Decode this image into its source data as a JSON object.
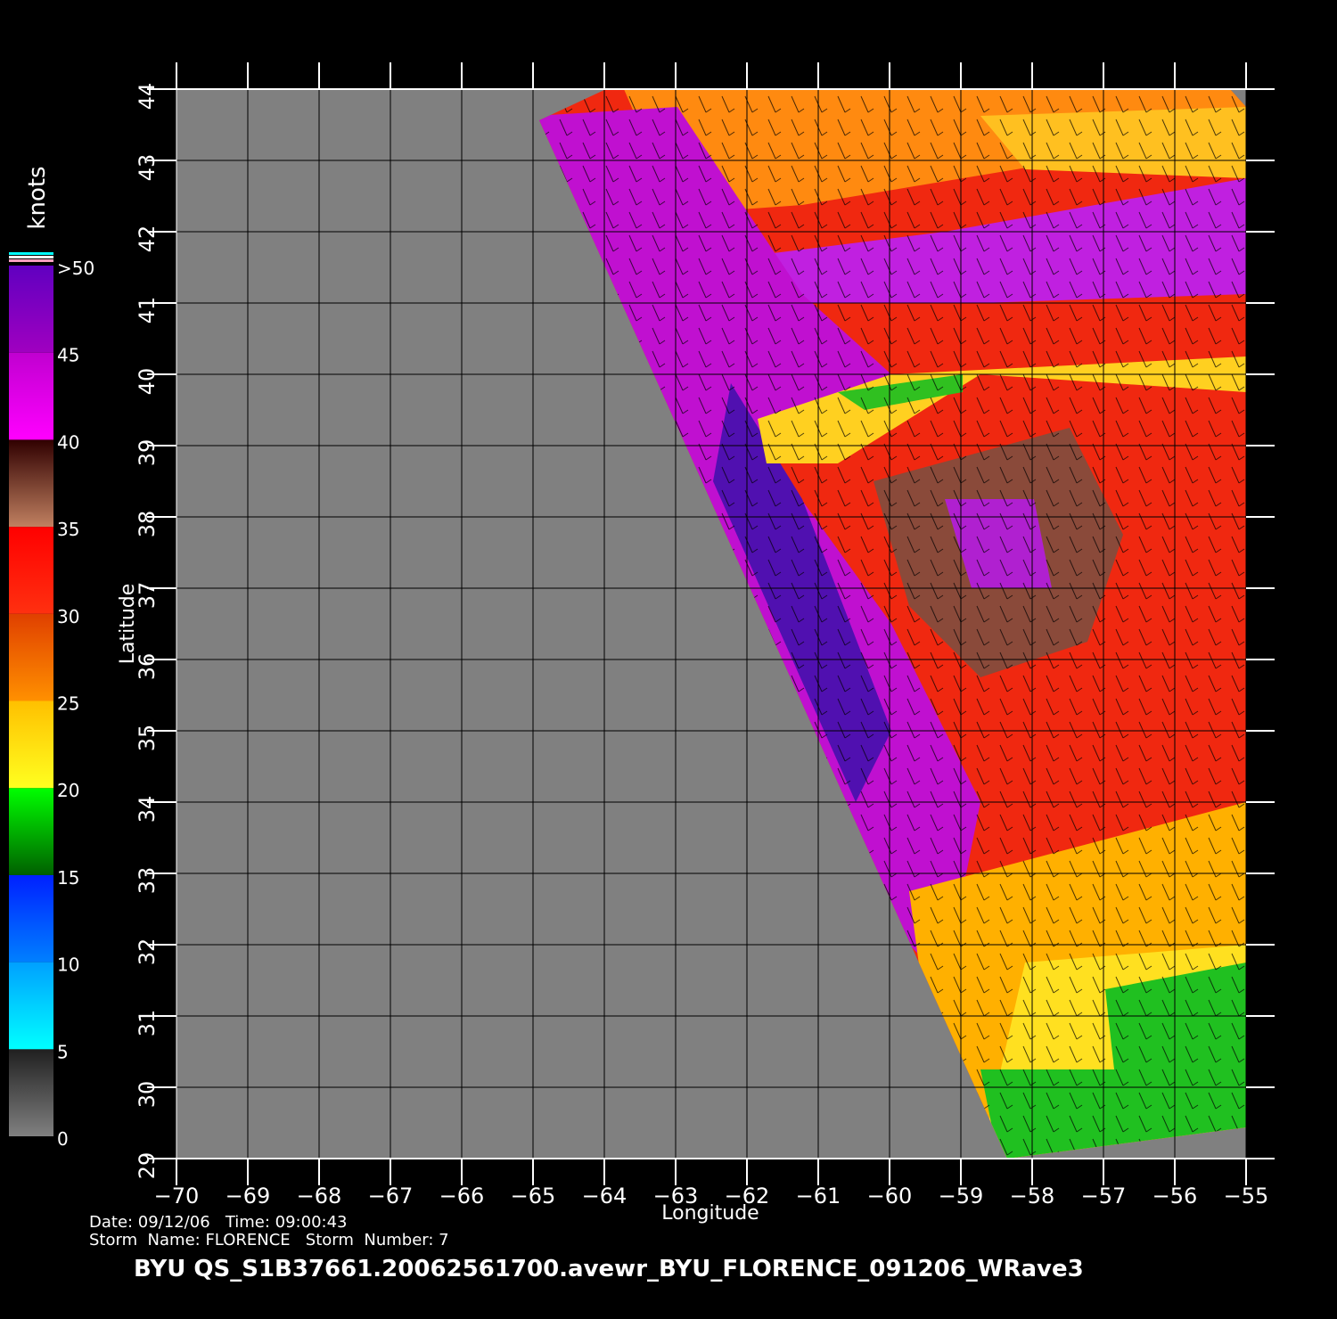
{
  "map": {
    "title": "BYU  QS_S1B37661.20062561700.avewr_BYU_FLORENCE_091206_WRave3",
    "info": [
      "Date: 09/12/06   Time: 09:00:43",
      "Storm  Name: FLORENCE   Storm  Number: 7"
    ],
    "xlabel": "Longitude",
    "ylabel": "Latitude",
    "xlim": [
      -70,
      -55
    ],
    "ylim": [
      29,
      44
    ],
    "xticks": [
      -70,
      -69,
      -68,
      -67,
      -66,
      -65,
      -64,
      -63,
      -62,
      -61,
      -60,
      -59,
      -58,
      -57,
      -56,
      -55
    ],
    "yticks": [
      29,
      30,
      31,
      32,
      33,
      34,
      35,
      36,
      37,
      38,
      39,
      40,
      41,
      42,
      43,
      44
    ],
    "colorbar": {
      "label": "knots",
      "lim": [
        0,
        50
      ],
      "ticks": [
        0,
        5,
        10,
        15,
        20,
        25,
        30,
        35,
        40,
        45,
        {
          "value": 50,
          "label": ">50"
        }
      ]
    }
  }
}
